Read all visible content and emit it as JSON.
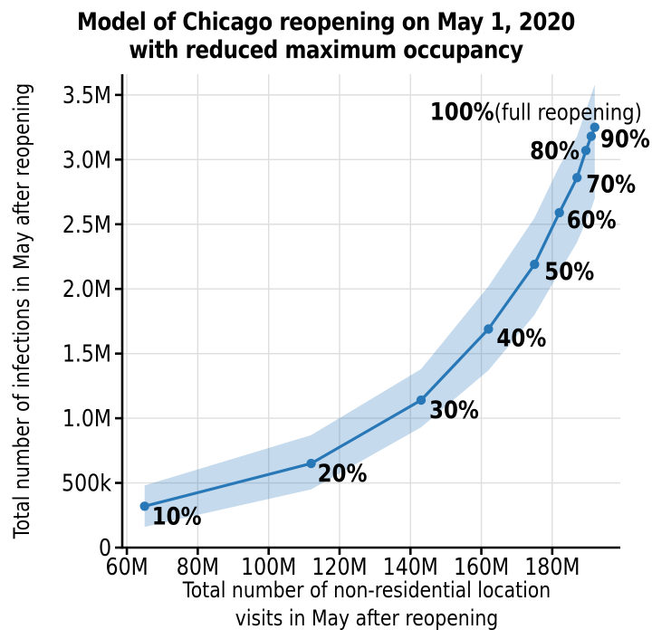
{
  "figure": {
    "title_line1": "Model of Chicago reopening on May 1, 2020",
    "title_line2": "with reduced maximum occupancy"
  },
  "chart_data": {
    "type": "line",
    "title": "Model of Chicago reopening on May 1, 2020 with reduced maximum occupancy",
    "xlabel_line1": "Total number of non-residential location",
    "xlabel_line2": "visits in May after reopening",
    "ylabel": "Total number of infections in May after reopening",
    "x_units": "visits (millions)",
    "y_units": "infections (millions)",
    "grid": true,
    "legend": "none",
    "xlim": [
      58.7,
      199.2
    ],
    "ylim": [
      0,
      3.66
    ],
    "x_ticks": [
      {
        "value": 60,
        "label": "60M"
      },
      {
        "value": 80,
        "label": "80M"
      },
      {
        "value": 100,
        "label": "100M"
      },
      {
        "value": 120,
        "label": "120M"
      },
      {
        "value": 140,
        "label": "140M"
      },
      {
        "value": 160,
        "label": "160M"
      },
      {
        "value": 180,
        "label": "180M"
      }
    ],
    "y_ticks": [
      {
        "value": 0,
        "label": "0"
      },
      {
        "value": 0.5,
        "label": "500k"
      },
      {
        "value": 1.0,
        "label": "1.0M"
      },
      {
        "value": 1.5,
        "label": "1.5M"
      },
      {
        "value": 2.0,
        "label": "2.0M"
      },
      {
        "value": 2.5,
        "label": "2.5M"
      },
      {
        "value": 3.0,
        "label": "3.0M"
      },
      {
        "value": 3.5,
        "label": "3.5M"
      }
    ],
    "series": [
      {
        "name": "modeled-infections-by-max-occupancy",
        "points": [
          {
            "occupancy": "10%",
            "x": 65,
            "y": 0.32,
            "lower": 0.16,
            "upper": 0.48,
            "label_dx": 8,
            "label_dy": 20,
            "anchor": "start"
          },
          {
            "occupancy": "20%",
            "x": 112,
            "y": 0.65,
            "lower": 0.45,
            "upper": 0.87,
            "label_dx": 7,
            "label_dy": 20,
            "anchor": "start"
          },
          {
            "occupancy": "30%",
            "x": 143,
            "y": 1.14,
            "lower": 0.93,
            "upper": 1.38,
            "label_dx": 9,
            "label_dy": 20,
            "anchor": "start"
          },
          {
            "occupancy": "40%",
            "x": 162,
            "y": 1.69,
            "lower": 1.37,
            "upper": 2.02,
            "label_dx": 9,
            "label_dy": 19,
            "anchor": "start"
          },
          {
            "occupancy": "50%",
            "x": 175,
            "y": 2.19,
            "lower": 1.8,
            "upper": 2.55,
            "label_dx": 11,
            "label_dy": 17,
            "anchor": "start"
          },
          {
            "occupancy": "60%",
            "x": 182,
            "y": 2.59,
            "lower": 2.13,
            "upper": 2.95,
            "label_dx": 8,
            "label_dy": 17,
            "anchor": "start"
          },
          {
            "occupancy": "70%",
            "x": 187,
            "y": 2.86,
            "lower": 2.36,
            "upper": 3.18,
            "label_dx": 10,
            "label_dy": 16,
            "anchor": "start"
          },
          {
            "occupancy": "80%",
            "x": 189.5,
            "y": 3.07,
            "lower": 2.52,
            "upper": 3.38,
            "label_dx": -7,
            "label_dy": 9,
            "anchor": "end"
          },
          {
            "occupancy": "90%",
            "x": 191,
            "y": 3.18,
            "lower": 2.62,
            "upper": 3.5,
            "label_dx": 10,
            "label_dy": 12,
            "anchor": "start"
          },
          {
            "occupancy": "100%",
            "x": 192,
            "y": 3.25,
            "lower": 2.7,
            "upper": 3.58,
            "label_dx": -182,
            "label_dy": -8,
            "anchor": "start",
            "suffix": "(full reopening)"
          }
        ]
      }
    ],
    "colors": {
      "line": "#2878b8",
      "marker": "#2878b8",
      "band": "#2878b8",
      "band_opacity": 0.27,
      "grid": "#dedede",
      "axis": "#000000",
      "text": "#000000"
    }
  }
}
